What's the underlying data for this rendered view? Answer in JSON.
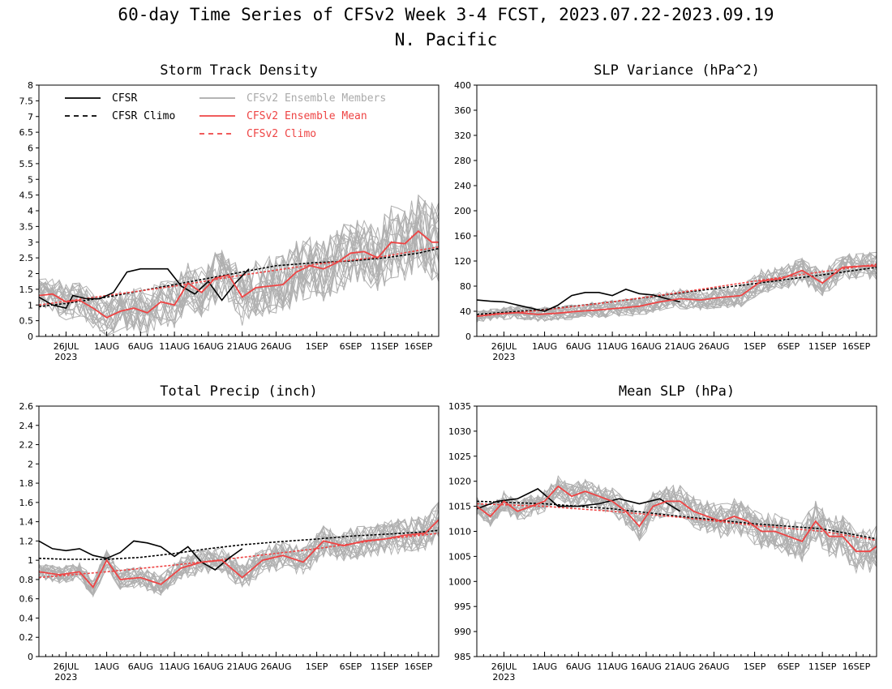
{
  "figure": {
    "title": "60-day Time Series of CFSv2 Week 3-4 FCST, 2023.07.22-2023.09.19",
    "subtitle": "N. Pacific"
  },
  "legend": [
    {
      "key": "cfsr",
      "label": "CFSR",
      "color": "#000000",
      "dash": "solid"
    },
    {
      "key": "cfsr_climo",
      "label": "CFSR Climo",
      "color": "#000000",
      "dash": "dashed"
    },
    {
      "key": "members",
      "label": "CFSv2 Ensemble Members",
      "color": "#aaaaaa",
      "dash": "solid"
    },
    {
      "key": "ens_mean",
      "label": "CFSv2 Ensemble Mean",
      "color": "#ee4444",
      "dash": "solid"
    },
    {
      "key": "cfs_climo",
      "label": "CFSv2 Climo",
      "color": "#ee4444",
      "dash": "dashed"
    }
  ],
  "chart_data": [
    {
      "type": "line",
      "title": "Storm Track Density",
      "ylim": [
        0,
        8
      ],
      "yticks": [
        "0",
        "0.5",
        "1",
        "1.5",
        "2",
        "2.5",
        "3",
        "3.5",
        "4",
        "4.5",
        "5",
        "5.5",
        "6",
        "6.5",
        "7",
        "7.5",
        "8"
      ],
      "xlim": [
        "2023-07-22",
        "2023-09-19"
      ],
      "xticks": [
        {
          "date": "2023-07-26",
          "label": "26JUL",
          "sub": "2023"
        },
        {
          "date": "2023-08-01",
          "label": "1AUG"
        },
        {
          "date": "2023-08-06",
          "label": "6AUG"
        },
        {
          "date": "2023-08-11",
          "label": "11AUG"
        },
        {
          "date": "2023-08-16",
          "label": "16AUG"
        },
        {
          "date": "2023-08-21",
          "label": "21AUG"
        },
        {
          "date": "2023-08-26",
          "label": "26AUG"
        },
        {
          "date": "2023-09-01",
          "label": "1SEP"
        },
        {
          "date": "2023-09-06",
          "label": "6SEP"
        },
        {
          "date": "2023-09-11",
          "label": "11SEP"
        },
        {
          "date": "2023-09-16",
          "label": "16SEP"
        }
      ],
      "series": [
        {
          "key": "cfsr_climo",
          "x": [
            "2023-07-22",
            "2023-07-26",
            "2023-08-01",
            "2023-08-06",
            "2023-08-11",
            "2023-08-16",
            "2023-08-21",
            "2023-08-26",
            "2023-09-01",
            "2023-09-06",
            "2023-09-11",
            "2023-09-16",
            "2023-09-19"
          ],
          "y": [
            0.95,
            1.05,
            1.25,
            1.45,
            1.65,
            1.85,
            2.05,
            2.25,
            2.35,
            2.4,
            2.5,
            2.65,
            2.8
          ]
        },
        {
          "key": "cfs_climo",
          "x": [
            "2023-07-22",
            "2023-08-01",
            "2023-08-11",
            "2023-08-21",
            "2023-09-01",
            "2023-09-11",
            "2023-09-19"
          ],
          "y": [
            1.0,
            1.3,
            1.6,
            1.95,
            2.3,
            2.55,
            2.85
          ]
        },
        {
          "key": "cfsr",
          "x": [
            "2023-07-22",
            "2023-07-24",
            "2023-07-26",
            "2023-07-27",
            "2023-07-29",
            "2023-07-31",
            "2023-08-02",
            "2023-08-04",
            "2023-08-06",
            "2023-08-08",
            "2023-08-10",
            "2023-08-12",
            "2023-08-14",
            "2023-08-16",
            "2023-08-18",
            "2023-08-20",
            "2023-08-22"
          ],
          "y": [
            1.25,
            1.0,
            0.9,
            1.3,
            1.2,
            1.2,
            1.4,
            2.05,
            2.15,
            2.15,
            2.15,
            1.6,
            1.35,
            1.75,
            1.15,
            1.7,
            2.15
          ]
        },
        {
          "key": "ens_mean",
          "x": [
            "2023-07-22",
            "2023-07-24",
            "2023-07-26",
            "2023-07-28",
            "2023-07-30",
            "2023-08-01",
            "2023-08-03",
            "2023-08-05",
            "2023-08-07",
            "2023-08-09",
            "2023-08-11",
            "2023-08-13",
            "2023-08-15",
            "2023-08-17",
            "2023-08-19",
            "2023-08-21",
            "2023-08-23",
            "2023-08-25",
            "2023-08-27",
            "2023-08-29",
            "2023-08-31",
            "2023-09-02",
            "2023-09-04",
            "2023-09-06",
            "2023-09-08",
            "2023-09-10",
            "2023-09-12",
            "2023-09-14",
            "2023-09-16",
            "2023-09-18",
            "2023-09-19"
          ],
          "y": [
            1.3,
            1.35,
            1.1,
            1.15,
            0.9,
            0.6,
            0.8,
            0.9,
            0.75,
            1.1,
            1.0,
            1.7,
            1.4,
            1.85,
            1.95,
            1.25,
            1.55,
            1.6,
            1.65,
            2.05,
            2.25,
            2.15,
            2.35,
            2.65,
            2.7,
            2.5,
            3.0,
            2.95,
            3.35,
            3.0,
            3.0
          ]
        }
      ]
    },
    {
      "type": "line",
      "title": "SLP Variance (hPa^2)",
      "ylim": [
        0,
        400
      ],
      "yticks": [
        "0",
        "40",
        "80",
        "120",
        "160",
        "200",
        "240",
        "280",
        "320",
        "360",
        "400"
      ],
      "xlim": [
        "2023-07-22",
        "2023-09-19"
      ],
      "xticks": [
        {
          "date": "2023-07-26",
          "label": "26JUL",
          "sub": "2023"
        },
        {
          "date": "2023-08-01",
          "label": "1AUG"
        },
        {
          "date": "2023-08-06",
          "label": "6AUG"
        },
        {
          "date": "2023-08-11",
          "label": "11AUG"
        },
        {
          "date": "2023-08-16",
          "label": "16AUG"
        },
        {
          "date": "2023-08-21",
          "label": "21AUG"
        },
        {
          "date": "2023-08-26",
          "label": "26AUG"
        },
        {
          "date": "2023-09-01",
          "label": "1SEP"
        },
        {
          "date": "2023-09-06",
          "label": "6SEP"
        },
        {
          "date": "2023-09-11",
          "label": "11SEP"
        },
        {
          "date": "2023-09-16",
          "label": "16SEP"
        }
      ],
      "series": [
        {
          "key": "cfsr_climo",
          "x": [
            "2023-07-22",
            "2023-08-01",
            "2023-08-11",
            "2023-08-21",
            "2023-09-01",
            "2023-09-11",
            "2023-09-19"
          ],
          "y": [
            35,
            43,
            55,
            69,
            84,
            98,
            110
          ]
        },
        {
          "key": "cfs_climo",
          "x": [
            "2023-07-22",
            "2023-08-01",
            "2023-08-11",
            "2023-08-21",
            "2023-09-01",
            "2023-09-11",
            "2023-09-19"
          ],
          "y": [
            32,
            42,
            55,
            70,
            88,
            103,
            115
          ]
        },
        {
          "key": "cfsr",
          "x": [
            "2023-07-22",
            "2023-07-24",
            "2023-07-26",
            "2023-07-28",
            "2023-07-30",
            "2023-08-01",
            "2023-08-03",
            "2023-08-05",
            "2023-08-07",
            "2023-08-09",
            "2023-08-11",
            "2023-08-13",
            "2023-08-15",
            "2023-08-17",
            "2023-08-19",
            "2023-08-21"
          ],
          "y": [
            58,
            56,
            55,
            50,
            45,
            40,
            50,
            65,
            70,
            70,
            65,
            75,
            68,
            66,
            60,
            55
          ]
        },
        {
          "key": "ens_mean",
          "x": [
            "2023-07-22",
            "2023-07-25",
            "2023-07-28",
            "2023-07-31",
            "2023-08-03",
            "2023-08-06",
            "2023-08-09",
            "2023-08-12",
            "2023-08-15",
            "2023-08-18",
            "2023-08-21",
            "2023-08-24",
            "2023-08-27",
            "2023-08-30",
            "2023-09-02",
            "2023-09-05",
            "2023-09-08",
            "2023-09-11",
            "2023-09-14",
            "2023-09-17",
            "2023-09-19"
          ],
          "y": [
            32,
            36,
            38,
            35,
            37,
            40,
            42,
            45,
            48,
            55,
            60,
            58,
            62,
            65,
            88,
            92,
            105,
            85,
            110,
            112,
            112
          ]
        }
      ]
    },
    {
      "type": "line",
      "title": "Total Precip (inch)",
      "ylim": [
        0,
        2.6
      ],
      "yticks": [
        "0",
        "0.2",
        "0.4",
        "0.6",
        "0.8",
        "1",
        "1.2",
        "1.4",
        "1.6",
        "1.8",
        "2",
        "2.2",
        "2.4",
        "2.6"
      ],
      "xlim": [
        "2023-07-22",
        "2023-09-19"
      ],
      "xticks": [
        {
          "date": "2023-07-26",
          "label": "26JUL",
          "sub": "2023"
        },
        {
          "date": "2023-08-01",
          "label": "1AUG"
        },
        {
          "date": "2023-08-06",
          "label": "6AUG"
        },
        {
          "date": "2023-08-11",
          "label": "11AUG"
        },
        {
          "date": "2023-08-16",
          "label": "16AUG"
        },
        {
          "date": "2023-08-21",
          "label": "21AUG"
        },
        {
          "date": "2023-08-26",
          "label": "26AUG"
        },
        {
          "date": "2023-09-01",
          "label": "1SEP"
        },
        {
          "date": "2023-09-06",
          "label": "6SEP"
        },
        {
          "date": "2023-09-11",
          "label": "11SEP"
        },
        {
          "date": "2023-09-16",
          "label": "16SEP"
        }
      ],
      "series": [
        {
          "key": "cfsr_climo",
          "x": [
            "2023-07-22",
            "2023-07-26",
            "2023-08-01",
            "2023-08-06",
            "2023-08-11",
            "2023-08-16",
            "2023-08-21",
            "2023-08-26",
            "2023-09-01",
            "2023-09-06",
            "2023-09-11",
            "2023-09-16",
            "2023-09-19"
          ],
          "y": [
            1.02,
            1.01,
            1.01,
            1.03,
            1.07,
            1.12,
            1.16,
            1.19,
            1.22,
            1.25,
            1.27,
            1.29,
            1.31
          ]
        },
        {
          "key": "cfs_climo",
          "x": [
            "2023-07-22",
            "2023-08-01",
            "2023-08-11",
            "2023-08-21",
            "2023-09-01",
            "2023-09-11",
            "2023-09-19"
          ],
          "y": [
            0.82,
            0.88,
            0.95,
            1.03,
            1.12,
            1.22,
            1.28
          ]
        },
        {
          "key": "cfsr",
          "x": [
            "2023-07-22",
            "2023-07-24",
            "2023-07-26",
            "2023-07-28",
            "2023-07-30",
            "2023-08-01",
            "2023-08-03",
            "2023-08-05",
            "2023-08-07",
            "2023-08-09",
            "2023-08-11",
            "2023-08-13",
            "2023-08-15",
            "2023-08-17",
            "2023-08-19",
            "2023-08-21"
          ],
          "y": [
            1.2,
            1.12,
            1.1,
            1.12,
            1.05,
            1.02,
            1.08,
            1.2,
            1.18,
            1.14,
            1.04,
            1.14,
            0.98,
            0.9,
            1.02,
            1.12
          ]
        },
        {
          "key": "ens_mean",
          "x": [
            "2023-07-22",
            "2023-07-25",
            "2023-07-28",
            "2023-07-30",
            "2023-08-01",
            "2023-08-03",
            "2023-08-06",
            "2023-08-09",
            "2023-08-12",
            "2023-08-15",
            "2023-08-18",
            "2023-08-21",
            "2023-08-24",
            "2023-08-27",
            "2023-08-30",
            "2023-09-02",
            "2023-09-05",
            "2023-09-08",
            "2023-09-11",
            "2023-09-14",
            "2023-09-17",
            "2023-09-19"
          ],
          "y": [
            0.88,
            0.85,
            0.88,
            0.72,
            1.0,
            0.8,
            0.82,
            0.75,
            0.92,
            0.98,
            1.0,
            0.82,
            1.0,
            1.05,
            0.98,
            1.2,
            1.15,
            1.2,
            1.22,
            1.26,
            1.28,
            1.42
          ]
        }
      ]
    },
    {
      "type": "line",
      "title": "Mean SLP (hPa)",
      "ylim": [
        985,
        1035
      ],
      "yticks": [
        "985",
        "990",
        "995",
        "1000",
        "1005",
        "1010",
        "1015",
        "1020",
        "1025",
        "1030",
        "1035"
      ],
      "xlim": [
        "2023-07-22",
        "2023-09-19"
      ],
      "xticks": [
        {
          "date": "2023-07-26",
          "label": "26JUL",
          "sub": "2023"
        },
        {
          "date": "2023-08-01",
          "label": "1AUG"
        },
        {
          "date": "2023-08-06",
          "label": "6AUG"
        },
        {
          "date": "2023-08-11",
          "label": "11AUG"
        },
        {
          "date": "2023-08-16",
          "label": "16AUG"
        },
        {
          "date": "2023-08-21",
          "label": "21AUG"
        },
        {
          "date": "2023-08-26",
          "label": "26AUG"
        },
        {
          "date": "2023-09-01",
          "label": "1SEP"
        },
        {
          "date": "2023-09-06",
          "label": "6SEP"
        },
        {
          "date": "2023-09-11",
          "label": "11SEP"
        },
        {
          "date": "2023-09-16",
          "label": "16SEP"
        }
      ],
      "series": [
        {
          "key": "cfsr_climo",
          "x": [
            "2023-07-22",
            "2023-08-01",
            "2023-08-11",
            "2023-08-21",
            "2023-09-01",
            "2023-09-11",
            "2023-09-19"
          ],
          "y": [
            1016,
            1015.5,
            1014.5,
            1013,
            1011.5,
            1010.5,
            1008.5
          ]
        },
        {
          "key": "cfs_climo",
          "x": [
            "2023-07-22",
            "2023-08-01",
            "2023-08-11",
            "2023-08-21",
            "2023-09-01",
            "2023-09-11",
            "2023-09-19"
          ],
          "y": [
            1015.5,
            1015,
            1014,
            1012.8,
            1011.2,
            1010,
            1008.2
          ]
        },
        {
          "key": "cfsr",
          "x": [
            "2023-07-22",
            "2023-07-25",
            "2023-07-28",
            "2023-07-31",
            "2023-08-03",
            "2023-08-06",
            "2023-08-09",
            "2023-08-12",
            "2023-08-15",
            "2023-08-18",
            "2023-08-21"
          ],
          "y": [
            1014.5,
            1016,
            1016.5,
            1018.5,
            1015,
            1015,
            1015.5,
            1016.5,
            1015.5,
            1016.5,
            1014
          ]
        },
        {
          "key": "ens_mean",
          "x": [
            "2023-07-22",
            "2023-07-24",
            "2023-07-26",
            "2023-07-28",
            "2023-07-30",
            "2023-08-01",
            "2023-08-03",
            "2023-08-05",
            "2023-08-07",
            "2023-08-09",
            "2023-08-11",
            "2023-08-13",
            "2023-08-15",
            "2023-08-17",
            "2023-08-19",
            "2023-08-21",
            "2023-08-23",
            "2023-08-25",
            "2023-08-27",
            "2023-08-29",
            "2023-08-31",
            "2023-09-02",
            "2023-09-04",
            "2023-09-06",
            "2023-09-08",
            "2023-09-10",
            "2023-09-12",
            "2023-09-14",
            "2023-09-16",
            "2023-09-18",
            "2023-09-19"
          ],
          "y": [
            1015,
            1013,
            1016,
            1014,
            1015,
            1016,
            1019,
            1017,
            1018,
            1017,
            1016,
            1014,
            1011,
            1015,
            1016,
            1016,
            1014,
            1013,
            1012,
            1013,
            1012,
            1010,
            1010,
            1009,
            1008,
            1012,
            1009,
            1009,
            1006,
            1006,
            1007
          ]
        }
      ]
    }
  ]
}
